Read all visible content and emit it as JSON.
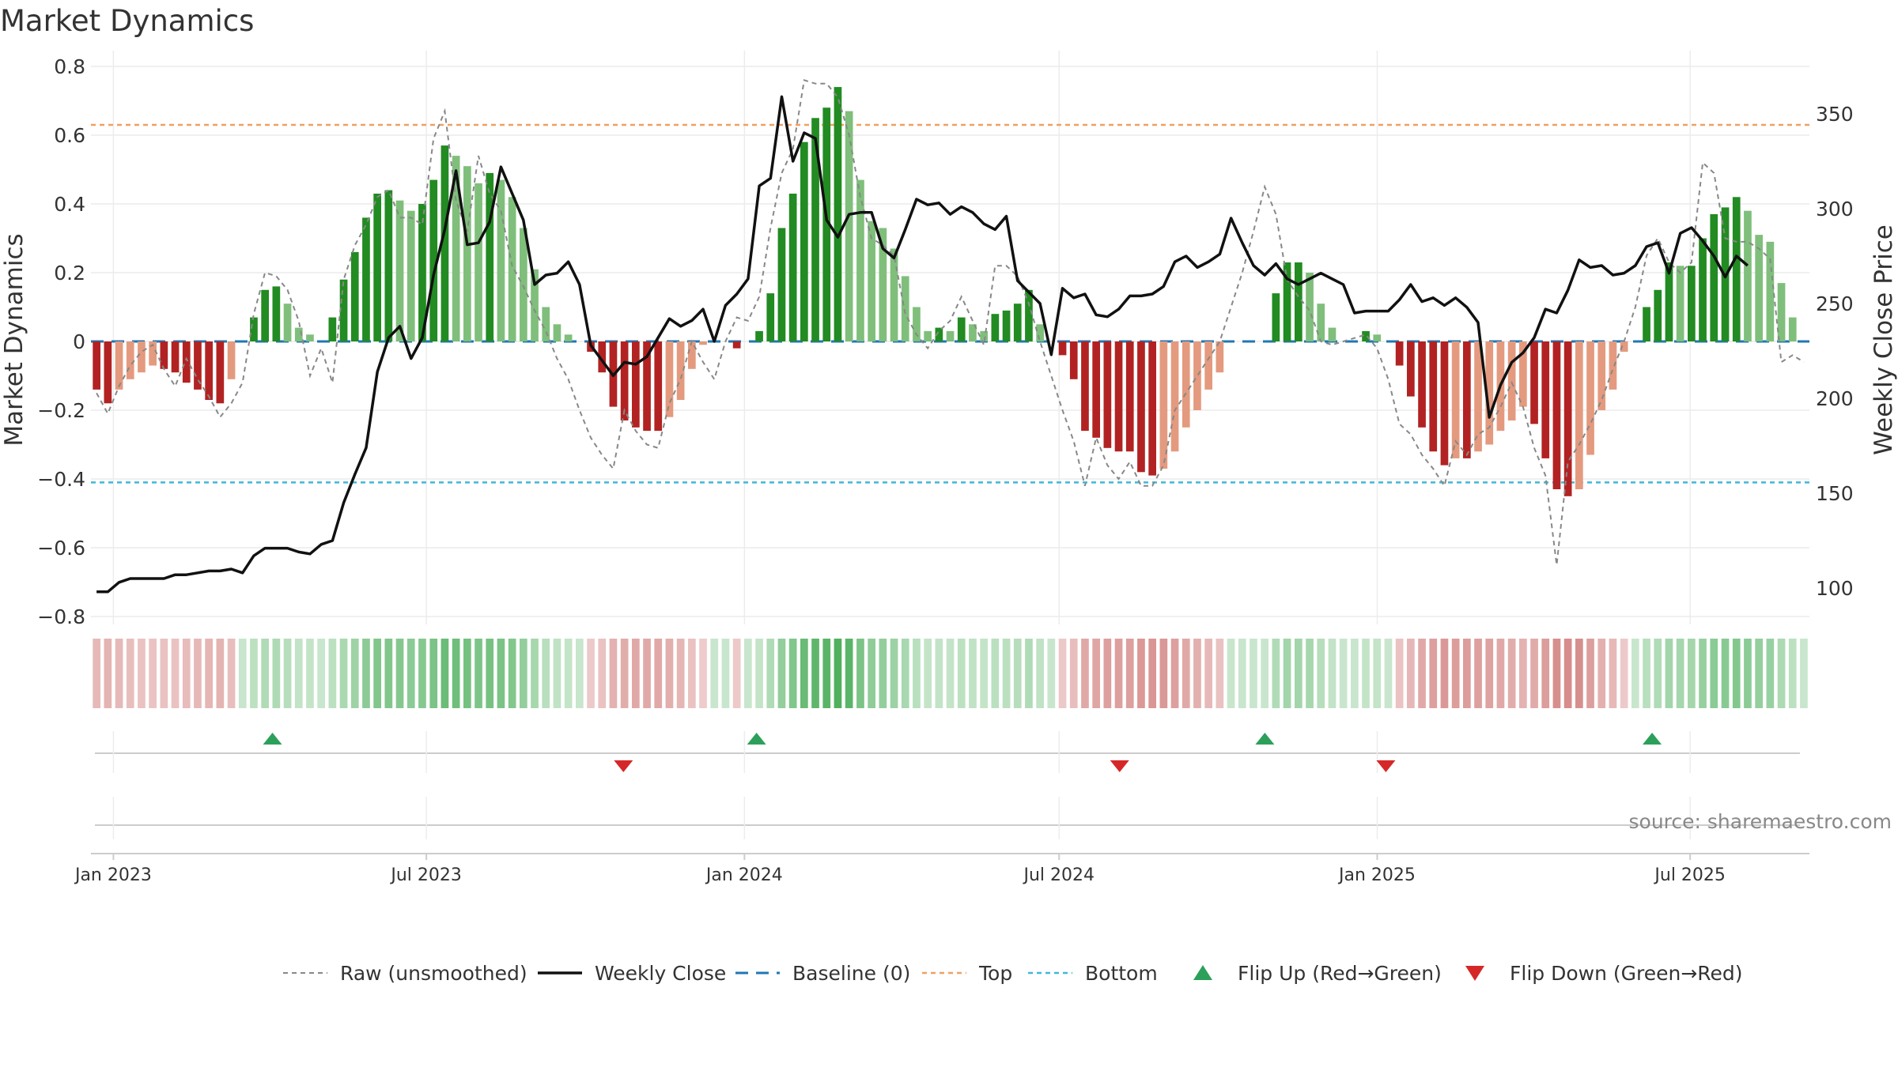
{
  "chart_data": {
    "type": "bar",
    "title": "Market Dynamics",
    "ylabel": "Market Dynamics",
    "y2label": "Weekly Close Price",
    "ylim": [
      -0.8,
      0.8
    ],
    "y2lim": [
      85,
      375
    ],
    "yticks": [
      "0.8",
      "0.6",
      "0.4",
      "0.2",
      "0",
      "−0.2",
      "−0.4",
      "−0.6",
      "−0.8"
    ],
    "y2ticks": [
      "350",
      "300",
      "250",
      "200",
      "150",
      "100"
    ],
    "x_start": "2022-12-19",
    "x_end": "2025-09-08",
    "xtick_labels": [
      "Jan 2023",
      "Jul 2023",
      "Jan 2024",
      "Jul 2024",
      "Jan 2025",
      "Jul 2025"
    ],
    "xtick_dates": [
      "2023-01-01",
      "2023-07-01",
      "2024-01-01",
      "2024-07-01",
      "2025-01-01",
      "2025-07-01"
    ],
    "top_line": 0.63,
    "bottom_line": -0.41,
    "baseline": 0,
    "grid": true,
    "colors": {
      "strong_up": "#228b22",
      "weak_up": "#7fbf7b",
      "strong_down": "#b22222",
      "weak_down": "#e49a7e",
      "close": "#111111",
      "raw": "#888888",
      "baseline": "#1f77b4",
      "top": "#f0a060",
      "bottom": "#40b8d8",
      "flip_up": "#2ca05a",
      "flip_down": "#d62728"
    },
    "series": [
      {
        "name": "Market Dynamics",
        "values": [
          -0.14,
          -0.18,
          -0.14,
          -0.11,
          -0.09,
          -0.07,
          -0.08,
          -0.09,
          -0.12,
          -0.14,
          -0.17,
          -0.18,
          -0.11,
          0,
          0.07,
          0.15,
          0.16,
          0.11,
          0.04,
          0.02,
          0,
          0.07,
          0.18,
          0.26,
          0.36,
          0.43,
          0.44,
          0.41,
          0.38,
          0.4,
          0.47,
          0.57,
          0.54,
          0.51,
          0.46,
          0.49,
          0.47,
          0.42,
          0.33,
          0.21,
          0.1,
          0.05,
          0.02,
          0,
          -0.03,
          -0.09,
          -0.19,
          -0.23,
          -0.25,
          -0.26,
          -0.26,
          -0.22,
          -0.17,
          -0.08,
          -0.01,
          0,
          0,
          -0.02,
          0,
          0.03,
          0.14,
          0.33,
          0.43,
          0.58,
          0.65,
          0.68,
          0.74,
          0.67,
          0.47,
          0.35,
          0.33,
          0.27,
          0.19,
          0.1,
          0.03,
          0.04,
          0.03,
          0.07,
          0.05,
          0.03,
          0.08,
          0.09,
          0.11,
          0.15,
          0.05,
          0,
          -0.04,
          -0.11,
          -0.26,
          -0.28,
          -0.31,
          -0.32,
          -0.32,
          -0.38,
          -0.39,
          -0.37,
          -0.32,
          -0.25,
          -0.2,
          -0.14,
          -0.09,
          0,
          0,
          0,
          0,
          0.14,
          0.23,
          0.23,
          0.2,
          0.11,
          0.04,
          0,
          0,
          0.03,
          0.02,
          0,
          -0.07,
          -0.16,
          -0.25,
          -0.32,
          -0.36,
          -0.34,
          -0.34,
          -0.32,
          -0.3,
          -0.26,
          -0.23,
          -0.19,
          -0.24,
          -0.34,
          -0.43,
          -0.45,
          -0.43,
          -0.33,
          -0.2,
          -0.14,
          -0.03,
          0,
          0.1,
          0.15,
          0.23,
          0.22,
          0.22,
          0.3,
          0.37,
          0.39,
          0.42,
          0.38,
          0.31,
          0.29,
          0.17,
          0.07,
          0
        ]
      },
      {
        "name": "Raw (unsmoothed)",
        "values": [
          -0.15,
          -0.21,
          -0.13,
          -0.07,
          -0.03,
          -0.01,
          -0.08,
          -0.13,
          -0.05,
          -0.11,
          -0.16,
          -0.22,
          -0.18,
          -0.12,
          0.08,
          0.2,
          0.19,
          0.15,
          0.06,
          -0.1,
          -0.02,
          -0.12,
          0.18,
          0.28,
          0.34,
          0.42,
          0.44,
          0.36,
          0.36,
          0.34,
          0.59,
          0.67,
          0.41,
          0.32,
          0.54,
          0.43,
          0.38,
          0.22,
          0.16,
          0.09,
          0.03,
          -0.05,
          -0.11,
          -0.2,
          -0.28,
          -0.33,
          -0.37,
          -0.2,
          -0.26,
          -0.3,
          -0.31,
          -0.18,
          -0.11,
          0,
          -0.06,
          -0.11,
          0,
          0.07,
          0.06,
          0.13,
          0.33,
          0.49,
          0.56,
          0.76,
          0.75,
          0.75,
          0.71,
          0.6,
          0.42,
          0.3,
          0.28,
          0.25,
          0.08,
          0.02,
          -0.02,
          0.03,
          0.06,
          0.13,
          0.06,
          -0.01,
          0.22,
          0.22,
          0.19,
          0.11,
          0,
          -0.1,
          -0.2,
          -0.29,
          -0.42,
          -0.28,
          -0.36,
          -0.4,
          -0.35,
          -0.42,
          -0.42,
          -0.36,
          -0.2,
          -0.15,
          -0.1,
          -0.05,
          0,
          0.1,
          0.2,
          0.32,
          0.45,
          0.37,
          0.18,
          0.13,
          0.09,
          0,
          -0.01,
          0,
          0.01,
          0.02,
          -0.02,
          -0.11,
          -0.24,
          -0.27,
          -0.33,
          -0.37,
          -0.42,
          -0.29,
          -0.33,
          -0.27,
          -0.25,
          -0.19,
          -0.12,
          -0.19,
          -0.31,
          -0.39,
          -0.65,
          -0.35,
          -0.3,
          -0.24,
          -0.17,
          -0.08,
          0,
          0.1,
          0.25,
          0.3,
          0.23,
          0.2,
          0.23,
          0.52,
          0.49,
          0.3,
          0.29,
          0.29,
          0.27,
          0.24,
          -0.06,
          -0.04,
          -0.06
        ]
      },
      {
        "name": "Weekly Close",
        "values": [
          98,
          98,
          103,
          105,
          105,
          105,
          105,
          107,
          107,
          108,
          109,
          109,
          110,
          108,
          117,
          121,
          121,
          121,
          119,
          118,
          123,
          125,
          145,
          160,
          174,
          214,
          232,
          238,
          221,
          232,
          265,
          289,
          320,
          281,
          282,
          293,
          322,
          308,
          294,
          260,
          265,
          266,
          272,
          260,
          228,
          220,
          212,
          219,
          218,
          222,
          232,
          242,
          238,
          241,
          247,
          230,
          249,
          255,
          263,
          312,
          316,
          359,
          325,
          340,
          337,
          294,
          285,
          297,
          298,
          298,
          279,
          274,
          289,
          305,
          302,
          303,
          297,
          301,
          298,
          292,
          289,
          296,
          262,
          256,
          250,
          223,
          258,
          253,
          255,
          244,
          243,
          247,
          254,
          254,
          255,
          259,
          272,
          275,
          269,
          272,
          276,
          295,
          282,
          270,
          265,
          271,
          263,
          260,
          263,
          266,
          263,
          260,
          245,
          246,
          246,
          246,
          252,
          260,
          251,
          253,
          249,
          253,
          248,
          240,
          190,
          207,
          219,
          224,
          232,
          247,
          245,
          257,
          273,
          269,
          270,
          265,
          266,
          270,
          280,
          282,
          266,
          287,
          290,
          283,
          275,
          264,
          275,
          270
        ]
      }
    ],
    "flips_up": [
      "2023-04-03",
      "2024-01-08",
      "2024-10-28",
      "2025-06-09"
    ],
    "flips_down": [
      "2023-10-23",
      "2024-08-05",
      "2025-01-06"
    ],
    "legend": [
      "Raw (unsmoothed)",
      "Weekly Close",
      "Baseline (0)",
      "Top",
      "Bottom",
      "Flip Up (Red→Green)",
      "Flip Down (Green→Red)"
    ],
    "legend_position": "bottom",
    "source": "source: sharemaestro.com"
  }
}
